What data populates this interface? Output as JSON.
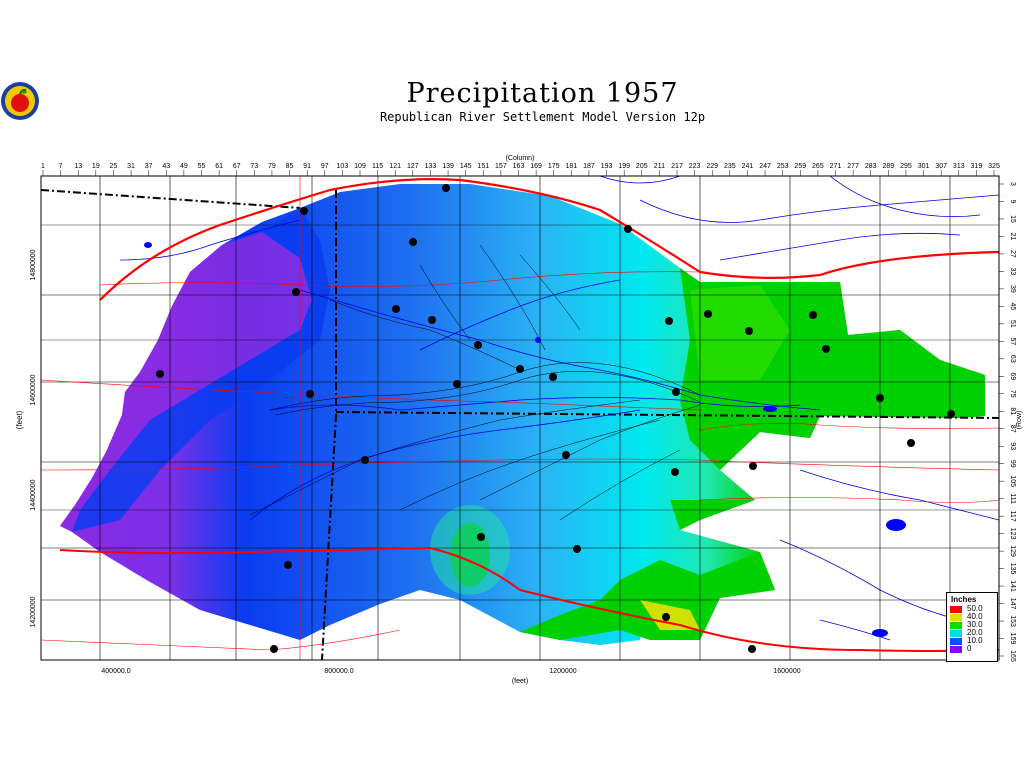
{
  "title": "Precipitation 1957",
  "subtitle": "Republican River Settlement Model Version 12p",
  "top_axis": {
    "label": "(Column)",
    "ticks": [
      "1",
      "7",
      "13",
      "19",
      "25",
      "31",
      "37",
      "43",
      "49",
      "55",
      "61",
      "67",
      "73",
      "79",
      "85",
      "91",
      "97",
      "103",
      "109",
      "115",
      "121",
      "127",
      "133",
      "139",
      "145",
      "151",
      "157",
      "163",
      "169",
      "175",
      "181",
      "187",
      "193",
      "199",
      "205",
      "211",
      "217",
      "223",
      "229",
      "235",
      "241",
      "247",
      "253",
      "259",
      "265",
      "271",
      "277",
      "283",
      "289",
      "295",
      "301",
      "307",
      "313",
      "319",
      "325"
    ]
  },
  "right_axis": {
    "label": "(Row)",
    "ticks": [
      "3",
      "9",
      "15",
      "21",
      "27",
      "33",
      "39",
      "45",
      "51",
      "57",
      "63",
      "69",
      "75",
      "81",
      "87",
      "93",
      "99",
      "105",
      "111",
      "117",
      "123",
      "129",
      "135",
      "141",
      "147",
      "153",
      "159",
      "165"
    ]
  },
  "left_axis": {
    "label": "(feet)",
    "ticks": [
      "14800000",
      "14600000",
      "14400000",
      "14200000"
    ]
  },
  "bottom_axis": {
    "label": "(feet)",
    "ticks": [
      "400000.0",
      "800000.0",
      "1200000",
      "1600000"
    ]
  },
  "legend": {
    "title": "Inches",
    "entries": [
      {
        "label": "50.0",
        "color": "#ff0000"
      },
      {
        "label": "40.0",
        "color": "#e0e000"
      },
      {
        "label": "30.0",
        "color": "#00e000"
      },
      {
        "label": "20.0",
        "color": "#00e0e0"
      },
      {
        "label": "10.0",
        "color": "#0050ff"
      },
      {
        "label": "0",
        "color": "#9000ff"
      }
    ]
  },
  "colors": {
    "purple": "#8a2be2",
    "deep_blue": "#0a3cf0",
    "mid_blue": "#1f78f0",
    "light_blue": "#2ab4f4",
    "cyan": "#00e8f0",
    "aqua_green": "#20e8a0",
    "green": "#00d000",
    "deep_green": "#00b030",
    "county_lines": "#000000",
    "roads": "#ff0000",
    "rivers": "#0000ff"
  },
  "icon": "apple-logo-icon"
}
